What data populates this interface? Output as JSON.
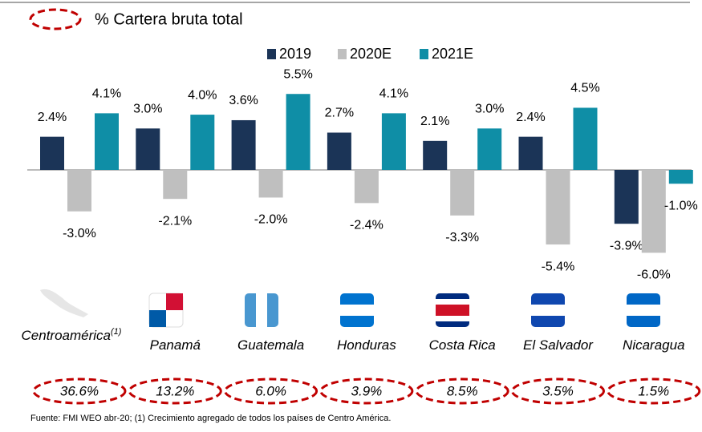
{
  "chart_data": {
    "type": "bar",
    "title": "% Cartera bruta total",
    "categories": [
      "Centroamérica",
      "Panamá",
      "Guatemala",
      "Honduras",
      "Costa Rica",
      "El Salvador",
      "Nicaragua"
    ],
    "superscript": "(1)",
    "series": [
      {
        "name": "2019",
        "color": "#1b3457",
        "values": [
          2.4,
          3.0,
          3.6,
          2.7,
          2.1,
          2.4,
          -3.9
        ],
        "value_labels": [
          "2.4%",
          "3.0%",
          "3.6%",
          "2.7%",
          "2.1%",
          "2.4%",
          "-3.9%"
        ]
      },
      {
        "name": "2020E",
        "color": "#bfbfbf",
        "values": [
          -3.0,
          -2.1,
          -2.0,
          -2.4,
          -3.3,
          -5.4,
          -6.0
        ],
        "value_labels": [
          "-3.0%",
          "-2.1%",
          "-2.0%",
          "-2.4%",
          "-3.3%",
          "-5.4%",
          "-6.0%"
        ]
      },
      {
        "name": "2021E",
        "color": "#0f8ea6",
        "values": [
          4.1,
          4.0,
          5.5,
          4.1,
          3.0,
          4.5,
          -1.0
        ],
        "value_labels": [
          "4.1%",
          "4.0%",
          "5.5%",
          "4.1%",
          "3.0%",
          "4.5%",
          "-1.0%"
        ]
      }
    ],
    "ylim": [
      -6.5,
      6.5
    ],
    "shares": [
      "36.6%",
      "13.2%",
      "6.0%",
      "3.9%",
      "8.5%",
      "3.5%",
      "1.5%"
    ],
    "footnote": "Fuente:  FMI WEO abr-20; (1) Crecimiento agregado de todos los países de Centro América."
  }
}
